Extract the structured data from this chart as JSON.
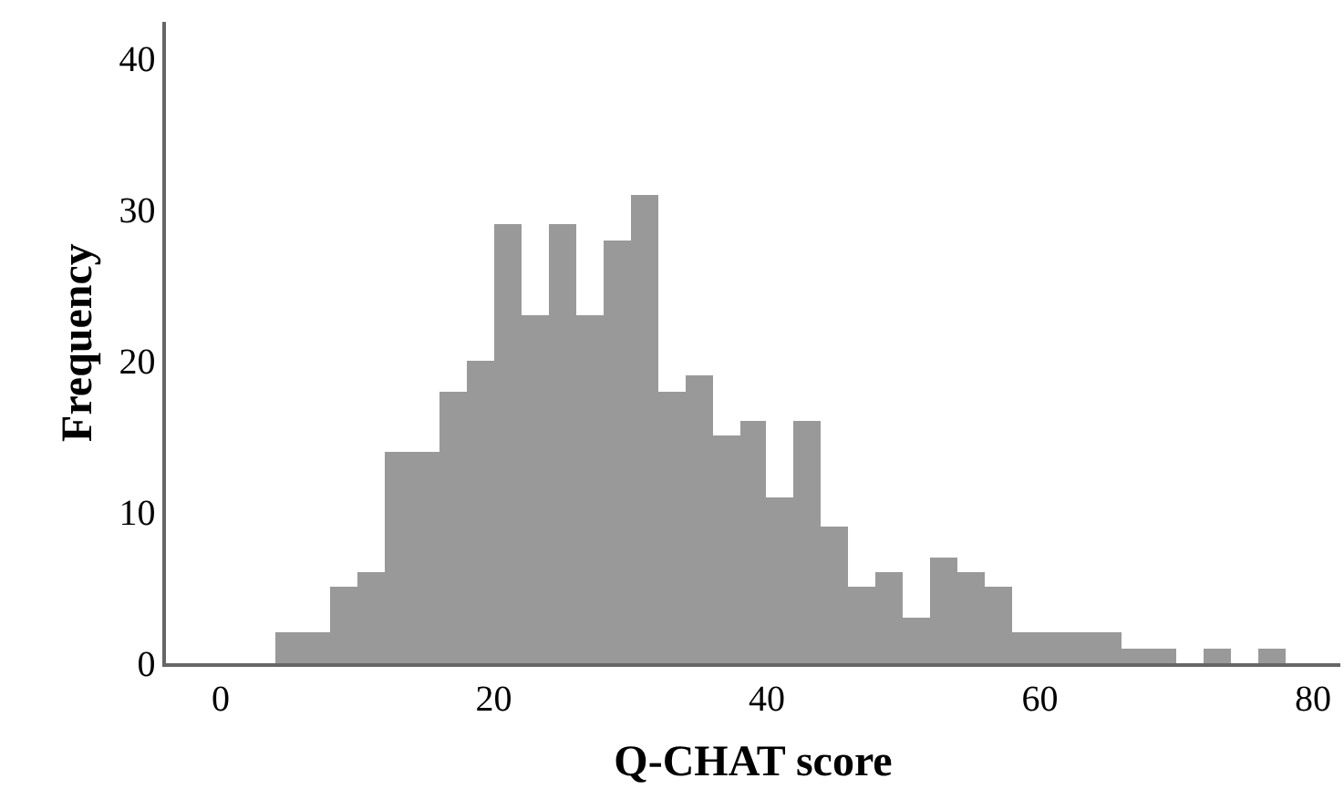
{
  "chart_data": {
    "type": "histogram",
    "xlabel": "Q-CHAT score",
    "ylabel": "Frequency",
    "bins": [
      -4,
      -2,
      0,
      2,
      4,
      6,
      8,
      10,
      12,
      14,
      16,
      18,
      20,
      22,
      24,
      26,
      28,
      30,
      32,
      34,
      36,
      38,
      40,
      42,
      44,
      46,
      48,
      50,
      52,
      54,
      56,
      58,
      60,
      62,
      64,
      66,
      68,
      70,
      72,
      74,
      76,
      78,
      80,
      82
    ],
    "values": [
      0,
      0,
      0,
      0,
      2,
      2,
      5,
      6,
      14,
      14,
      18,
      20,
      29,
      23,
      29,
      23,
      28,
      31,
      18,
      19,
      15,
      16,
      11,
      16,
      9,
      5,
      6,
      3,
      7,
      6,
      5,
      2,
      2,
      2,
      2,
      1,
      1,
      0,
      1,
      0,
      1,
      0,
      0
    ],
    "color": "#999999",
    "xlim": [
      -4,
      82
    ],
    "xticks": [
      0,
      20,
      40,
      60,
      80
    ],
    "ylim": [
      0,
      42.4
    ],
    "yticks": [
      0,
      10,
      20,
      30,
      40
    ]
  }
}
